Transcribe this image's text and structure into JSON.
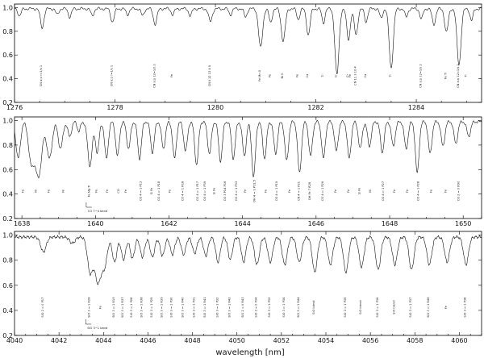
{
  "chart_data": [
    {
      "type": "line",
      "panel": "top",
      "xlim": [
        1276,
        1285.3
      ],
      "ylim": [
        0.2,
        1.03
      ],
      "xticks": [
        "1276",
        "1278",
        "1280",
        "1282",
        "1284"
      ],
      "xtick_values": [
        1276,
        1278,
        1280,
        1282,
        1284
      ],
      "yticks": [
        "0.2",
        "0.4",
        "0.6",
        "0.8",
        "1.0"
      ],
      "ytick_values": [
        0.2,
        0.4,
        0.6,
        0.8,
        1.0
      ],
      "continuum": 0.99,
      "lines": [
        {
          "x": 1276.1,
          "depth": 0.06,
          "width": 0.03
        },
        {
          "x": 1276.55,
          "depth": 0.16,
          "width": 0.035
        },
        {
          "x": 1276.85,
          "depth": 0.05,
          "width": 0.03
        },
        {
          "x": 1277.1,
          "depth": 0.07,
          "width": 0.03
        },
        {
          "x": 1277.55,
          "depth": 0.06,
          "width": 0.03
        },
        {
          "x": 1277.95,
          "depth": 0.11,
          "width": 0.035
        },
        {
          "x": 1278.25,
          "depth": 0.05,
          "width": 0.03
        },
        {
          "x": 1278.55,
          "depth": 0.06,
          "width": 0.03
        },
        {
          "x": 1278.8,
          "depth": 0.13,
          "width": 0.035
        },
        {
          "x": 1279.15,
          "depth": 0.05,
          "width": 0.03
        },
        {
          "x": 1279.5,
          "depth": 0.06,
          "width": 0.03
        },
        {
          "x": 1279.9,
          "depth": 0.11,
          "width": 0.035
        },
        {
          "x": 1280.3,
          "depth": 0.05,
          "width": 0.03
        },
        {
          "x": 1280.6,
          "depth": 0.07,
          "width": 0.03
        },
        {
          "x": 1280.9,
          "depth": 0.33,
          "width": 0.04
        },
        {
          "x": 1281.1,
          "depth": 0.12,
          "width": 0.03
        },
        {
          "x": 1281.35,
          "depth": 0.27,
          "width": 0.04
        },
        {
          "x": 1281.65,
          "depth": 0.09,
          "width": 0.03
        },
        {
          "x": 1281.85,
          "depth": 0.22,
          "width": 0.035
        },
        {
          "x": 1282.15,
          "depth": 0.12,
          "width": 0.03
        },
        {
          "x": 1282.42,
          "depth": 0.56,
          "width": 0.04
        },
        {
          "x": 1282.65,
          "depth": 0.26,
          "width": 0.035
        },
        {
          "x": 1282.8,
          "depth": 0.22,
          "width": 0.035
        },
        {
          "x": 1283.0,
          "depth": 0.11,
          "width": 0.03
        },
        {
          "x": 1283.3,
          "depth": 0.08,
          "width": 0.03
        },
        {
          "x": 1283.5,
          "depth": 0.5,
          "width": 0.04
        },
        {
          "x": 1283.8,
          "depth": 0.07,
          "width": 0.03
        },
        {
          "x": 1284.1,
          "depth": 0.09,
          "width": 0.03
        },
        {
          "x": 1284.35,
          "depth": 0.13,
          "width": 0.035
        },
        {
          "x": 1284.6,
          "depth": 0.2,
          "width": 0.035
        },
        {
          "x": 1284.85,
          "depth": 0.47,
          "width": 0.04
        },
        {
          "x": 1285.1,
          "depth": 0.1,
          "width": 0.03
        }
      ],
      "labels": [
        {
          "x": 1276.55,
          "text": "CN a:p r=1/s 1"
        },
        {
          "x": 1277.95,
          "text": "CN a:p r=1/s 1"
        },
        {
          "x": 1278.8,
          "text": "CN a:p 12=1/s 2"
        },
        {
          "x": 1279.15,
          "text": "Fe"
        },
        {
          "x": 1279.9,
          "text": "CN Ⅱ 12 13 4 5"
        },
        {
          "x": 1280.9,
          "text": "Fe Mn II"
        },
        {
          "x": 1281.1,
          "text": "Fe"
        },
        {
          "x": 1281.35,
          "text": "Ni II"
        },
        {
          "x": 1281.65,
          "text": "Fe"
        },
        {
          "x": 1281.85,
          "text": "Ca"
        },
        {
          "x": 1282.15,
          "text": "Ti"
        },
        {
          "x": 1282.42,
          "text": "Cr"
        },
        {
          "x": 1282.65,
          "text": "Cr"
        },
        {
          "x": 1282.7,
          "text": "Fe"
        },
        {
          "x": 1282.8,
          "text": "CN 11 3 10 4"
        },
        {
          "x": 1283.0,
          "text": "Ca"
        },
        {
          "x": 1283.5,
          "text": "Ti"
        },
        {
          "x": 1284.1,
          "text": "CN a:p 12=1/s 2"
        },
        {
          "x": 1284.6,
          "text": "Fe Ti"
        },
        {
          "x": 1284.85,
          "text": "CN a:p 12=1/s 2"
        },
        {
          "x": 1285.0,
          "text": "Ti"
        }
      ]
    },
    {
      "type": "line",
      "panel": "middle",
      "xlim": [
        1637.8,
        1650.5
      ],
      "ylim": [
        0.2,
        1.03
      ],
      "xticks": [
        "1638",
        "1640",
        "1642",
        "1644",
        "1646",
        "1648",
        "1650"
      ],
      "xtick_values": [
        1638,
        1640,
        1642,
        1644,
        1646,
        1648,
        1650
      ],
      "yticks": [
        "0.2",
        "0.4",
        "0.6",
        "0.8",
        "1.0"
      ],
      "ytick_values": [
        0.2,
        0.4,
        0.6,
        0.8,
        1.0
      ],
      "continuum": 0.99,
      "lines": [
        {
          "x": 1637.9,
          "depth": 0.3,
          "width": 0.06
        },
        {
          "x": 1638.25,
          "depth": 0.32,
          "width": 0.07
        },
        {
          "x": 1638.45,
          "depth": 0.45,
          "width": 0.09
        },
        {
          "x": 1638.75,
          "depth": 0.3,
          "width": 0.07
        },
        {
          "x": 1639.05,
          "depth": 0.22,
          "width": 0.06
        },
        {
          "x": 1639.3,
          "depth": 0.12,
          "width": 0.05
        },
        {
          "x": 1639.55,
          "depth": 0.08,
          "width": 0.04
        },
        {
          "x": 1639.85,
          "depth": 0.36,
          "width": 0.06
        },
        {
          "x": 1640.05,
          "depth": 0.25,
          "width": 0.05
        },
        {
          "x": 1640.3,
          "depth": 0.3,
          "width": 0.05
        },
        {
          "x": 1640.6,
          "depth": 0.28,
          "width": 0.05
        },
        {
          "x": 1640.9,
          "depth": 0.22,
          "width": 0.05
        },
        {
          "x": 1641.2,
          "depth": 0.3,
          "width": 0.05
        },
        {
          "x": 1641.55,
          "depth": 0.25,
          "width": 0.05
        },
        {
          "x": 1641.85,
          "depth": 0.22,
          "width": 0.05
        },
        {
          "x": 1642.15,
          "depth": 0.3,
          "width": 0.05
        },
        {
          "x": 1642.45,
          "depth": 0.24,
          "width": 0.05
        },
        {
          "x": 1642.75,
          "depth": 0.35,
          "width": 0.05
        },
        {
          "x": 1643.1,
          "depth": 0.26,
          "width": 0.05
        },
        {
          "x": 1643.4,
          "depth": 0.32,
          "width": 0.05
        },
        {
          "x": 1643.75,
          "depth": 0.3,
          "width": 0.05
        },
        {
          "x": 1644.05,
          "depth": 0.28,
          "width": 0.05
        },
        {
          "x": 1644.3,
          "depth": 0.45,
          "width": 0.05
        },
        {
          "x": 1644.6,
          "depth": 0.3,
          "width": 0.05
        },
        {
          "x": 1644.9,
          "depth": 0.26,
          "width": 0.05
        },
        {
          "x": 1645.2,
          "depth": 0.32,
          "width": 0.05
        },
        {
          "x": 1645.55,
          "depth": 0.42,
          "width": 0.05
        },
        {
          "x": 1645.85,
          "depth": 0.28,
          "width": 0.05
        },
        {
          "x": 1646.2,
          "depth": 0.3,
          "width": 0.05
        },
        {
          "x": 1646.55,
          "depth": 0.24,
          "width": 0.05
        },
        {
          "x": 1646.9,
          "depth": 0.3,
          "width": 0.05
        },
        {
          "x": 1647.2,
          "depth": 0.22,
          "width": 0.05
        },
        {
          "x": 1647.45,
          "depth": 0.2,
          "width": 0.05
        },
        {
          "x": 1647.8,
          "depth": 0.25,
          "width": 0.05
        },
        {
          "x": 1648.1,
          "depth": 0.2,
          "width": 0.05
        },
        {
          "x": 1648.45,
          "depth": 0.22,
          "width": 0.05
        },
        {
          "x": 1648.75,
          "depth": 0.42,
          "width": 0.05
        },
        {
          "x": 1649.1,
          "depth": 0.26,
          "width": 0.05
        },
        {
          "x": 1649.45,
          "depth": 0.2,
          "width": 0.05
        },
        {
          "x": 1649.8,
          "depth": 0.18,
          "width": 0.05
        },
        {
          "x": 1650.15,
          "depth": 0.12,
          "width": 0.05
        }
      ],
      "labels": [
        {
          "x": 1638.05,
          "text": "Fe"
        },
        {
          "x": 1638.4,
          "text": "Ni"
        },
        {
          "x": 1638.75,
          "text": "Fe"
        },
        {
          "x": 1639.15,
          "text": "Ni"
        },
        {
          "x": 1639.85,
          "text": "Fe Mg Ti"
        },
        {
          "x": 1640.05,
          "text": "Fe"
        },
        {
          "x": 1640.35,
          "text": "Fe"
        },
        {
          "x": 1640.65,
          "text": "CO"
        },
        {
          "x": 1640.85,
          "text": "Fe"
        },
        {
          "x": 1641.25,
          "text": "CO 4 = 1 P13"
        },
        {
          "x": 1641.55,
          "text": "Si Fe"
        },
        {
          "x": 1641.75,
          "text": "CO 4 = 1 P18"
        },
        {
          "x": 1642.05,
          "text": "Fe"
        },
        {
          "x": 1642.4,
          "text": "CO 4 = 1 R18"
        },
        {
          "x": 1642.8,
          "text": "CO 4 = 1 P17"
        },
        {
          "x": 1643.0,
          "text": "CO 4 = 1 P39"
        },
        {
          "x": 1643.25,
          "text": "Si Fe"
        },
        {
          "x": 1643.55,
          "text": "CO 3 P14 P16"
        },
        {
          "x": 1643.85,
          "text": "CO 4 = 1 P33"
        },
        {
          "x": 1644.1,
          "text": "Fe"
        },
        {
          "x": 1644.35,
          "text": "OH 4 = 1 P11.5"
        },
        {
          "x": 1644.65,
          "text": "Fe"
        },
        {
          "x": 1644.95,
          "text": "CO 4 = 1 P15"
        },
        {
          "x": 1645.3,
          "text": "Fe"
        },
        {
          "x": 1645.55,
          "text": "CN 4 = 1 P21"
        },
        {
          "x": 1645.85,
          "text": "OH Fe 7 R26"
        },
        {
          "x": 1646.2,
          "text": "CO 4 = 1 P26"
        },
        {
          "x": 1646.55,
          "text": "Fe"
        },
        {
          "x": 1646.9,
          "text": "Fe"
        },
        {
          "x": 1647.2,
          "text": "Si Fe"
        },
        {
          "x": 1647.5,
          "text": "Ni"
        },
        {
          "x": 1647.85,
          "text": "CO 4 = 1 P27"
        },
        {
          "x": 1648.15,
          "text": "Fe"
        },
        {
          "x": 1648.5,
          "text": "Fe"
        },
        {
          "x": 1648.8,
          "text": "CO 4 = 1 P28"
        },
        {
          "x": 1649.15,
          "text": "Fe"
        },
        {
          "x": 1649.55,
          "text": "Fe"
        },
        {
          "x": 1649.9,
          "text": "CO 2 = 0 R90"
        }
      ],
      "band": {
        "x": 1639.75,
        "text": "CO 7−4 band"
      }
    },
    {
      "type": "line",
      "panel": "bottom",
      "xlim": [
        4040,
        4061
      ],
      "ylim": [
        0.2,
        1.03
      ],
      "xticks": [
        "4040",
        "4042",
        "4044",
        "4046",
        "4048",
        "4050",
        "4052",
        "4054",
        "4056",
        "4058",
        "4060"
      ],
      "xtick_values": [
        4040,
        4042,
        4044,
        4046,
        4048,
        4050,
        4052,
        4054,
        4056,
        4058,
        4060
      ],
      "yticks": [
        "0.2",
        "0.4",
        "0.6",
        "0.8",
        "1.0"
      ],
      "ytick_values": [
        0.2,
        0.4,
        0.6,
        0.8,
        1.0
      ],
      "xlabel": "wavelength [nm]",
      "continuum": 0.985,
      "lines": [
        {
          "x": 4041.3,
          "depth": 0.12,
          "width": 0.12
        },
        {
          "x": 4042.6,
          "depth": 0.05,
          "width": 0.12
        },
        {
          "x": 4043.4,
          "depth": 0.28,
          "width": 0.12
        },
        {
          "x": 4043.75,
          "depth": 0.36,
          "width": 0.14
        },
        {
          "x": 4044.05,
          "depth": 0.22,
          "width": 0.12
        },
        {
          "x": 4044.5,
          "depth": 0.2,
          "width": 0.1
        },
        {
          "x": 4044.9,
          "depth": 0.18,
          "width": 0.1
        },
        {
          "x": 4045.3,
          "depth": 0.17,
          "width": 0.1
        },
        {
          "x": 4045.75,
          "depth": 0.16,
          "width": 0.1
        },
        {
          "x": 4046.2,
          "depth": 0.16,
          "width": 0.1
        },
        {
          "x": 4046.65,
          "depth": 0.15,
          "width": 0.1
        },
        {
          "x": 4047.1,
          "depth": 0.14,
          "width": 0.1
        },
        {
          "x": 4047.6,
          "depth": 0.14,
          "width": 0.1
        },
        {
          "x": 4048.1,
          "depth": 0.13,
          "width": 0.1
        },
        {
          "x": 4048.6,
          "depth": 0.15,
          "width": 0.1
        },
        {
          "x": 4049.15,
          "depth": 0.2,
          "width": 0.1
        },
        {
          "x": 4049.7,
          "depth": 0.18,
          "width": 0.1
        },
        {
          "x": 4050.3,
          "depth": 0.2,
          "width": 0.1
        },
        {
          "x": 4050.9,
          "depth": 0.22,
          "width": 0.11
        },
        {
          "x": 4051.5,
          "depth": 0.2,
          "width": 0.11
        },
        {
          "x": 4052.15,
          "depth": 0.22,
          "width": 0.11
        },
        {
          "x": 4052.8,
          "depth": 0.2,
          "width": 0.11
        },
        {
          "x": 4053.5,
          "depth": 0.28,
          "width": 0.11
        },
        {
          "x": 4054.2,
          "depth": 0.22,
          "width": 0.11
        },
        {
          "x": 4054.9,
          "depth": 0.28,
          "width": 0.11
        },
        {
          "x": 4055.6,
          "depth": 0.24,
          "width": 0.11
        },
        {
          "x": 4056.35,
          "depth": 0.26,
          "width": 0.11
        },
        {
          "x": 4057.1,
          "depth": 0.22,
          "width": 0.11
        },
        {
          "x": 4057.85,
          "depth": 0.26,
          "width": 0.11
        },
        {
          "x": 4058.65,
          "depth": 0.22,
          "width": 0.11
        },
        {
          "x": 4059.45,
          "depth": 0.2,
          "width": 0.11
        },
        {
          "x": 4060.3,
          "depth": 0.22,
          "width": 0.11
        }
      ],
      "labels": [
        {
          "x": 4041.3,
          "text": "SiO 2 = 0 P17"
        },
        {
          "x": 4043.4,
          "text": "SiO 3 = 1 R28"
        },
        {
          "x": 4043.9,
          "text": "Fe"
        },
        {
          "x": 4044.5,
          "text": "SiO 3 = 1 R19"
        },
        {
          "x": 4044.9,
          "text": "SiO 3 = 1 R37"
        },
        {
          "x": 4045.3,
          "text": "SiO 3 = 1 P28"
        },
        {
          "x": 4045.75,
          "text": "SiO 3 = 1 R38"
        },
        {
          "x": 4046.2,
          "text": "SiO 3 = 1 P29"
        },
        {
          "x": 4046.65,
          "text": "SiO 3 = 1 R39"
        },
        {
          "x": 4047.1,
          "text": "SiO 3 = 1 P30"
        },
        {
          "x": 4047.6,
          "text": "SiO 3 = 1 R40"
        },
        {
          "x": 4048.1,
          "text": "SiO 3 = 1 P31"
        },
        {
          "x": 4048.6,
          "text": "SiO 3 = 1 R41"
        },
        {
          "x": 4049.15,
          "text": "SiO 3 = 1 P32"
        },
        {
          "x": 4049.7,
          "text": "SiO 3 = 1 R42"
        },
        {
          "x": 4050.3,
          "text": "SiO 2 = 0 R43"
        },
        {
          "x": 4050.9,
          "text": "SiO 2 = 0 P34"
        },
        {
          "x": 4051.5,
          "text": "SiO 3 = 1 P33"
        },
        {
          "x": 4052.15,
          "text": "SiO 3 = 1 P34"
        },
        {
          "x": 4052.8,
          "text": "SiO 3 = 1 R44"
        },
        {
          "x": 4053.5,
          "text": "SiO blend"
        },
        {
          "x": 4054.9,
          "text": "SiO 3 = 1 P35"
        },
        {
          "x": 4055.6,
          "text": "SiO blend"
        },
        {
          "x": 4056.35,
          "text": "SiO 3 = 1 P36"
        },
        {
          "x": 4057.1,
          "text": "SiO blend"
        },
        {
          "x": 4057.85,
          "text": "SiO 3 = 1 P37"
        },
        {
          "x": 4058.65,
          "text": "SiO 3 = 1 R46"
        },
        {
          "x": 4059.45,
          "text": "Fe"
        },
        {
          "x": 4060.3,
          "text": "SiO 3 = 1 P38"
        }
      ],
      "band": {
        "x": 4043.2,
        "text": "SiO 3−1 band"
      }
    }
  ]
}
